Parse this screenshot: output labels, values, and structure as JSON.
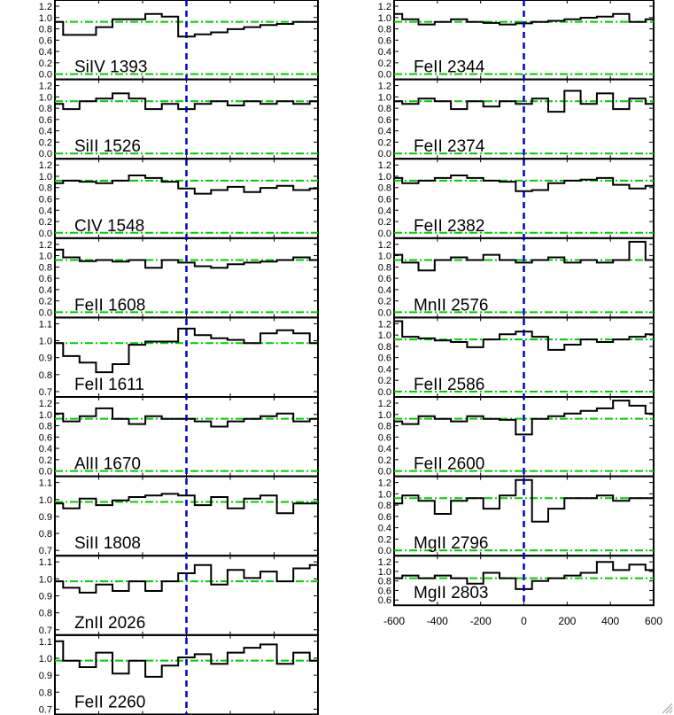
{
  "chart_data": {
    "type": "line",
    "line_style": "step",
    "xlim": [
      -600,
      600
    ],
    "xticks": [
      "-600",
      "-400",
      "-200",
      "0",
      "200",
      "400",
      "600"
    ],
    "grid": false,
    "colors": {
      "spectrum": "#000000",
      "continuum": "#00cc00",
      "zero_velocity": "#0000cc",
      "frame": "#000000"
    },
    "reference_lines": {
      "continuum_level": 1.0,
      "zero_level": 0.0,
      "zero_velocity": 0
    },
    "x": [
      -600,
      -525,
      -450,
      -375,
      -300,
      -225,
      -150,
      -75,
      0,
      75,
      150,
      225,
      300,
      375,
      450,
      525,
      600
    ],
    "panels": [
      {
        "label": "SiIV 1393",
        "column": "left",
        "ylim": [
          0,
          1.3
        ],
        "yticks": [
          "0.0",
          "0.2",
          "0.4",
          "0.6",
          "0.8",
          "1.0",
          "1.2"
        ],
        "flux": [
          1.0,
          0.75,
          0.75,
          0.9,
          1.05,
          1.05,
          1.15,
          1.1,
          0.72,
          0.76,
          0.8,
          0.86,
          0.9,
          0.94,
          0.96,
          1.0,
          1.0
        ]
      },
      {
        "label": "SiII 1526",
        "column": "left",
        "ylim": [
          0,
          1.3
        ],
        "yticks": [
          "0.0",
          "0.2",
          "0.4",
          "0.6",
          "0.8",
          "1.0",
          "1.2"
        ],
        "flux": [
          0.95,
          0.85,
          1.0,
          1.05,
          1.15,
          1.05,
          0.85,
          0.95,
          0.85,
          0.95,
          1.0,
          0.92,
          1.0,
          0.95,
          1.0,
          0.95,
          1.0
        ]
      },
      {
        "label": "CIV 1548",
        "column": "left",
        "ylim": [
          0,
          1.3
        ],
        "yticks": [
          "0.0",
          "0.2",
          "0.4",
          "0.6",
          "0.8",
          "1.0",
          "1.2"
        ],
        "flux": [
          0.95,
          1.0,
          0.98,
          0.95,
          1.0,
          1.1,
          1.05,
          0.98,
          0.85,
          0.75,
          0.82,
          0.88,
          0.78,
          0.86,
          0.9,
          0.82,
          0.85
        ]
      },
      {
        "label": "FeII 1608",
        "column": "left",
        "ylim": [
          0,
          1.3
        ],
        "yticks": [
          "0.0",
          "0.2",
          "0.4",
          "0.6",
          "0.8",
          "1.0",
          "1.2"
        ],
        "flux": [
          1.2,
          1.05,
          0.98,
          1.0,
          0.97,
          1.0,
          0.85,
          1.0,
          0.95,
          0.88,
          0.85,
          0.92,
          0.95,
          0.97,
          1.0,
          1.05,
          1.0
        ]
      },
      {
        "label": "FeII 1611",
        "column": "left",
        "ylim": [
          0.7,
          1.12
        ],
        "yticks": [
          "0.7",
          "0.8",
          "0.9",
          "1.0",
          "1.1"
        ],
        "flux": [
          1.0,
          0.92,
          0.88,
          0.82,
          0.87,
          0.99,
          1.01,
          1.01,
          1.09,
          1.05,
          1.03,
          1.02,
          1.0,
          1.06,
          1.08,
          1.06,
          1.0
        ]
      },
      {
        "label": "AlII 1670",
        "column": "left",
        "ylim": [
          0,
          1.3
        ],
        "yticks": [
          "0.0",
          "0.2",
          "0.4",
          "0.6",
          "0.8",
          "1.0",
          "1.2"
        ],
        "flux": [
          1.1,
          0.95,
          1.05,
          1.2,
          1.0,
          0.9,
          1.05,
          1.0,
          1.0,
          0.95,
          0.85,
          0.95,
          1.0,
          1.05,
          1.1,
          0.95,
          1.0
        ]
      },
      {
        "label": "SiII 1808",
        "column": "left",
        "ylim": [
          0.7,
          1.12
        ],
        "yticks": [
          "0.7",
          "0.8",
          "0.9",
          "1.0",
          "1.1"
        ],
        "flux": [
          0.99,
          0.96,
          1.02,
          0.98,
          1.01,
          1.03,
          1.04,
          1.05,
          1.04,
          0.98,
          1.03,
          0.96,
          1.02,
          1.04,
          0.93,
          0.99,
          0.99
        ]
      },
      {
        "label": "ZnII 2026",
        "column": "left",
        "ylim": [
          0.7,
          1.12
        ],
        "yticks": [
          "0.7",
          "0.8",
          "0.9",
          "1.0",
          "1.1"
        ],
        "flux": [
          1.0,
          0.96,
          0.93,
          0.98,
          0.94,
          1.0,
          0.94,
          1.0,
          1.05,
          1.1,
          0.98,
          1.07,
          1.02,
          1.06,
          1.0,
          1.08,
          1.1
        ]
      },
      {
        "label": "FeII 2260",
        "column": "left",
        "ylim": [
          0.7,
          1.12
        ],
        "yticks": [
          "0.7",
          "0.8",
          "0.9",
          "1.0",
          "1.1"
        ],
        "flux": [
          1.12,
          1.0,
          0.96,
          1.05,
          0.92,
          1.0,
          0.9,
          0.97,
          1.02,
          1.04,
          0.98,
          1.05,
          1.08,
          1.1,
          0.98,
          1.05,
          1.0
        ]
      },
      {
        "label": "FeII 2344",
        "column": "right",
        "ylim": [
          0,
          1.3
        ],
        "yticks": [
          "0.0",
          "0.2",
          "0.4",
          "0.6",
          "0.8",
          "1.0",
          "1.2"
        ],
        "flux": [
          1.15,
          1.05,
          0.95,
          1.0,
          1.05,
          1.0,
          0.98,
          0.95,
          0.97,
          1.0,
          1.02,
          1.05,
          1.08,
          1.1,
          1.15,
          1.0,
          1.05
        ]
      },
      {
        "label": "FeII 2374",
        "column": "right",
        "ylim": [
          0,
          1.3
        ],
        "yticks": [
          "0.0",
          "0.2",
          "0.4",
          "0.6",
          "0.8",
          "1.0",
          "1.2"
        ],
        "flux": [
          1.0,
          0.95,
          1.05,
          1.0,
          0.85,
          1.0,
          0.9,
          1.0,
          0.95,
          1.05,
          0.8,
          1.2,
          0.95,
          1.15,
          0.85,
          1.05,
          0.95
        ]
      },
      {
        "label": "FeII 2382",
        "column": "right",
        "ylim": [
          0,
          1.3
        ],
        "yticks": [
          "0.0",
          "0.2",
          "0.4",
          "0.6",
          "0.8",
          "1.0",
          "1.2"
        ],
        "flux": [
          1.05,
          0.95,
          1.0,
          1.05,
          1.1,
          1.05,
          1.0,
          0.98,
          0.8,
          0.82,
          0.95,
          1.0,
          1.02,
          1.05,
          0.92,
          0.85,
          0.9
        ]
      },
      {
        "label": "MnII 2576",
        "column": "right",
        "ylim": [
          0,
          1.3
        ],
        "yticks": [
          "0.0",
          "0.2",
          "0.4",
          "0.6",
          "0.8",
          "1.0",
          "1.2"
        ],
        "flux": [
          1.1,
          0.95,
          0.8,
          1.0,
          1.05,
          1.0,
          1.1,
          1.0,
          0.95,
          1.0,
          1.05,
          0.95,
          1.0,
          0.95,
          1.0,
          1.35,
          1.0
        ]
      },
      {
        "label": "FeII 2586",
        "column": "right",
        "ylim": [
          0,
          1.3
        ],
        "yticks": [
          "0.0",
          "0.2",
          "0.4",
          "0.6",
          "0.8",
          "1.0",
          "1.2"
        ],
        "flux": [
          1.35,
          1.05,
          1.02,
          0.98,
          0.95,
          0.85,
          1.0,
          1.1,
          1.15,
          1.05,
          0.8,
          0.9,
          1.0,
          0.95,
          1.0,
          1.05,
          1.1
        ]
      },
      {
        "label": "FeII 2600",
        "column": "right",
        "ylim": [
          0,
          1.3
        ],
        "yticks": [
          "0.0",
          "0.2",
          "0.4",
          "0.6",
          "0.8",
          "1.0",
          "1.2"
        ],
        "flux": [
          0.95,
          0.9,
          1.05,
          1.0,
          0.95,
          1.05,
          1.0,
          0.98,
          0.7,
          1.0,
          1.05,
          1.1,
          1.15,
          1.2,
          1.35,
          1.25,
          1.1
        ]
      },
      {
        "label": "MgII 2796",
        "column": "right",
        "ylim": [
          0,
          1.3
        ],
        "yticks": [
          "0.0",
          "0.2",
          "0.4",
          "0.6",
          "0.8",
          "1.0",
          "1.2"
        ],
        "flux": [
          0.9,
          1.05,
          0.95,
          0.7,
          0.95,
          1.0,
          0.8,
          1.05,
          1.35,
          0.55,
          0.8,
          1.0,
          1.0,
          1.05,
          0.95,
          1.0,
          1.0
        ]
      },
      {
        "label": "MgII 2803",
        "column": "right",
        "ylim": [
          0.6,
          1.3
        ],
        "yticks": [
          "0.6",
          "0.6",
          "0.8",
          "1.0",
          "1.2"
        ],
        "flux": [
          1.0,
          1.05,
          1.0,
          1.05,
          1.0,
          0.9,
          1.1,
          1.0,
          0.8,
          0.95,
          1.0,
          1.05,
          1.1,
          1.3,
          1.15,
          1.25,
          1.15
        ]
      }
    ]
  }
}
